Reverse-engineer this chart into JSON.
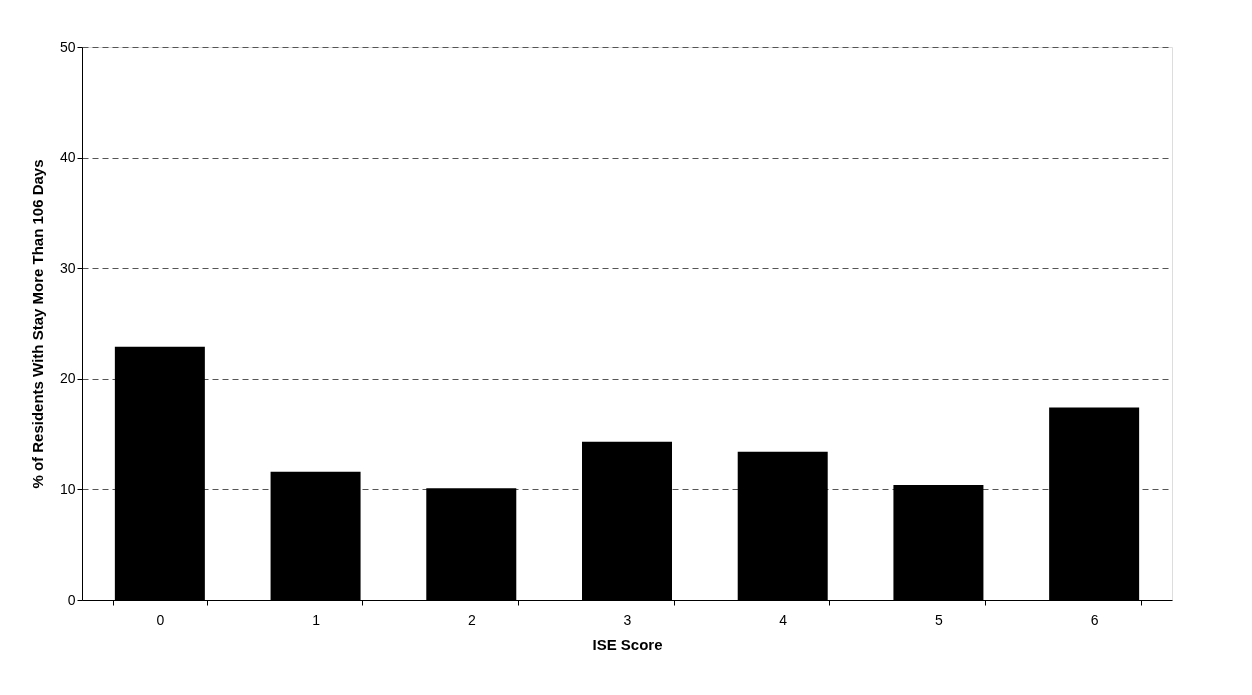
{
  "chart_data": {
    "type": "bar",
    "xlabel": "ISE Score",
    "ylabel": "% of Residents With Stay More Than 106 Days",
    "categories": [
      "0",
      "1",
      "2",
      "3",
      "4",
      "5",
      "6"
    ],
    "values": [
      22.9,
      11.6,
      10.1,
      14.3,
      13.4,
      10.4,
      17.4
    ],
    "color": "#000000",
    "ylim": [
      0,
      50
    ],
    "yticks": [
      0,
      10,
      20,
      30,
      40,
      50
    ],
    "grid": "y",
    "legend": false
  }
}
